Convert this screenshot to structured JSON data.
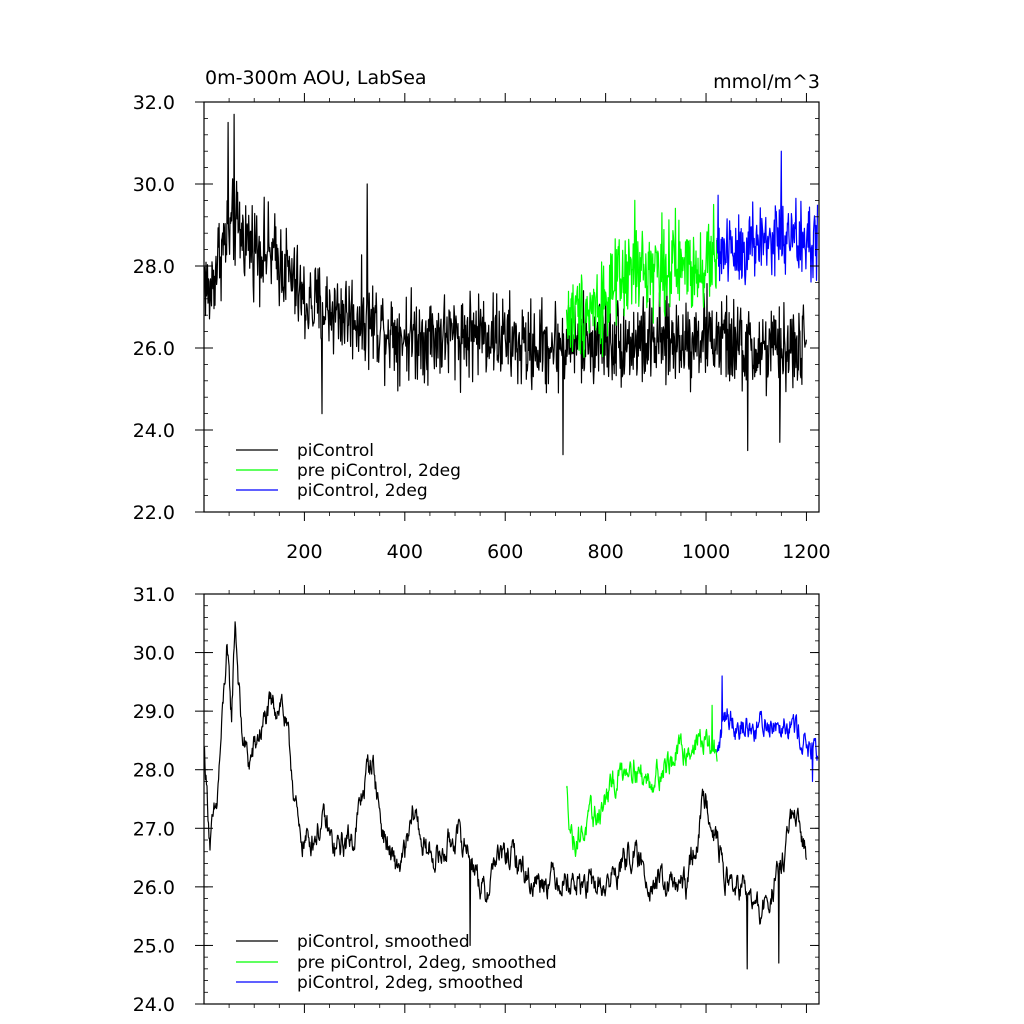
{
  "chart_data": [
    {
      "type": "line",
      "title": "0m-300m AOU, LabSea",
      "units": "mmol/m^3",
      "xlim": [
        0,
        1225
      ],
      "ylim": [
        22.0,
        32.0
      ],
      "xticks": [
        200,
        400,
        600,
        800,
        1000,
        1200
      ],
      "xtick_labels": [
        "200",
        "400",
        "600",
        "800",
        "1000",
        "1200"
      ],
      "yticks": [
        22.0,
        24.0,
        26.0,
        28.0,
        30.0,
        32.0
      ],
      "ytick_labels": [
        "22.0",
        "24.0",
        "26.0",
        "28.0",
        "30.0",
        "32.0"
      ],
      "legend_position": "bottom-left",
      "series": [
        {
          "name": "piControl",
          "color": "#000000",
          "x": [
            1,
            1200
          ],
          "anchors": [
            [
              1,
              27.8
            ],
            [
              10,
              27.2
            ],
            [
              30,
              28.3
            ],
            [
              60,
              29.0
            ],
            [
              90,
              28.6
            ],
            [
              130,
              28.3
            ],
            [
              160,
              28.0
            ],
            [
              200,
              27.1
            ],
            [
              260,
              26.9
            ],
            [
              320,
              26.7
            ],
            [
              400,
              26.3
            ],
            [
              500,
              26.3
            ],
            [
              560,
              26.4
            ],
            [
              640,
              26.0
            ],
            [
              720,
              26.1
            ],
            [
              800,
              26.2
            ],
            [
              900,
              26.1
            ],
            [
              1000,
              26.3
            ],
            [
              1100,
              25.9
            ],
            [
              1200,
              26.0
            ]
          ],
          "noise_amp": 0.85,
          "spikes": [
            [
              60,
              31.7
            ],
            [
              48,
              31.5
            ],
            [
              235,
              24.4
            ],
            [
              325,
              30.0
            ],
            [
              715,
              23.4
            ],
            [
              1083,
              23.5
            ],
            [
              1147,
              23.7
            ]
          ]
        },
        {
          "name": "pre piControl, 2deg",
          "color": "#00ff00",
          "x": [
            722,
            1022
          ],
          "anchors": [
            [
              722,
              26.7
            ],
            [
              800,
              27.2
            ],
            [
              850,
              27.8
            ],
            [
              900,
              28.0
            ],
            [
              950,
              28.0
            ],
            [
              1022,
              28.1
            ]
          ],
          "noise_amp": 0.85,
          "spikes": [
            [
              858,
              29.6
            ],
            [
              1015,
              29.5
            ]
          ]
        },
        {
          "name": "piControl, 2deg",
          "color": "#0000ff",
          "x": [
            1022,
            1222
          ],
          "anchors": [
            [
              1022,
              28.4
            ],
            [
              1080,
              28.5
            ],
            [
              1140,
              28.7
            ],
            [
              1222,
              28.5
            ]
          ],
          "noise_amp": 0.85,
          "spikes": [
            [
              1150,
              30.8
            ]
          ]
        }
      ]
    },
    {
      "type": "line",
      "title": "",
      "xlim": [
        0,
        1225
      ],
      "ylim": [
        24.0,
        31.0
      ],
      "yticks": [
        24.0,
        25.0,
        26.0,
        27.0,
        28.0,
        29.0,
        30.0,
        31.0
      ],
      "ytick_labels": [
        "24.0",
        "25.0",
        "26.0",
        "27.0",
        "28.0",
        "29.0",
        "30.0",
        "31.0"
      ],
      "legend_position": "bottom-left",
      "series": [
        {
          "name": "piControl, smoothed",
          "color": "#000000",
          "x": [
            1,
            1200
          ],
          "anchors": [
            [
              1,
              28.3
            ],
            [
              12,
              26.8
            ],
            [
              25,
              27.3
            ],
            [
              45,
              30.0
            ],
            [
              55,
              28.9
            ],
            [
              62,
              30.6
            ],
            [
              75,
              28.6
            ],
            [
              90,
              28.1
            ],
            [
              110,
              28.6
            ],
            [
              130,
              29.0
            ],
            [
              155,
              29.2
            ],
            [
              175,
              28.0
            ],
            [
              190,
              26.8
            ],
            [
              210,
              26.8
            ],
            [
              240,
              27.1
            ],
            [
              260,
              26.6
            ],
            [
              300,
              26.9
            ],
            [
              325,
              28.0
            ],
            [
              335,
              28.2
            ],
            [
              355,
              27.0
            ],
            [
              380,
              26.3
            ],
            [
              400,
              26.5
            ],
            [
              420,
              27.3
            ],
            [
              440,
              26.6
            ],
            [
              470,
              26.5
            ],
            [
              500,
              26.9
            ],
            [
              530,
              26.6
            ],
            [
              560,
              25.8
            ],
            [
              580,
              26.5
            ],
            [
              620,
              26.5
            ],
            [
              650,
              26.1
            ],
            [
              700,
              26.2
            ],
            [
              760,
              26.0
            ],
            [
              800,
              26.0
            ],
            [
              850,
              26.6
            ],
            [
              880,
              26.2
            ],
            [
              920,
              26.0
            ],
            [
              960,
              26.0
            ],
            [
              1000,
              27.6
            ],
            [
              1040,
              26.1
            ],
            [
              1080,
              25.9
            ],
            [
              1110,
              25.5
            ],
            [
              1150,
              26.3
            ],
            [
              1170,
              27.2
            ],
            [
              1200,
              26.6
            ]
          ],
          "noise_amp": 0.35,
          "spikes": [
            [
              530,
              25.0
            ],
            [
              1082,
              24.6
            ],
            [
              1145,
              24.7
            ]
          ]
        },
        {
          "name": "pre piControl, 2deg, smoothed",
          "color": "#00ff00",
          "x": [
            722,
            1022
          ],
          "anchors": [
            [
              722,
              27.6
            ],
            [
              735,
              26.8
            ],
            [
              760,
              27.0
            ],
            [
              790,
              27.3
            ],
            [
              820,
              27.8
            ],
            [
              850,
              28.2
            ],
            [
              880,
              27.8
            ],
            [
              910,
              28.0
            ],
            [
              950,
              28.3
            ],
            [
              990,
              28.5
            ],
            [
              1022,
              28.3
            ]
          ],
          "noise_amp": 0.35,
          "spikes": [
            [
              1012,
              29.1
            ]
          ]
        },
        {
          "name": "piControl, 2deg, smoothed",
          "color": "#0000ff",
          "x": [
            1022,
            1222
          ],
          "anchors": [
            [
              1022,
              28.2
            ],
            [
              1040,
              29.0
            ],
            [
              1060,
              28.8
            ],
            [
              1090,
              28.7
            ],
            [
              1120,
              28.8
            ],
            [
              1160,
              28.9
            ],
            [
              1190,
              28.6
            ],
            [
              1222,
              28.1
            ]
          ],
          "noise_amp": 0.35,
          "spikes": [
            [
              1032,
              29.6
            ],
            [
              1212,
              27.8
            ]
          ]
        }
      ]
    }
  ]
}
